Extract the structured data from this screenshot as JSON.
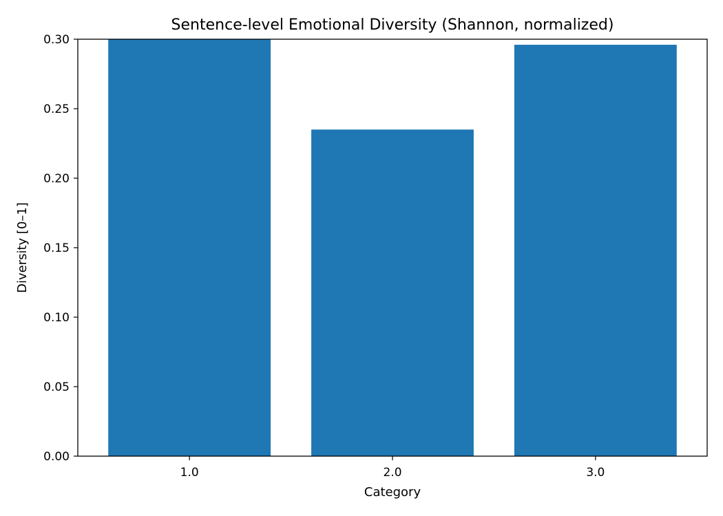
{
  "chart_data": {
    "type": "bar",
    "title": "Sentence-level Emotional Diversity (Shannon, normalized)",
    "xlabel": "Category",
    "ylabel": "Diversity [0–1]",
    "categories": [
      "1.0",
      "2.0",
      "3.0"
    ],
    "x": [
      1.0,
      2.0,
      3.0
    ],
    "values": [
      0.3,
      0.235,
      0.296
    ],
    "ylim": [
      0,
      0.3
    ],
    "yticks": [
      0.0,
      0.05,
      0.1,
      0.15,
      0.2,
      0.25,
      0.3
    ],
    "ytick_labels": [
      "0.00",
      "0.05",
      "0.10",
      "0.15",
      "0.20",
      "0.25",
      "0.30"
    ],
    "grid": false,
    "bar_color": "#1f77b4"
  }
}
